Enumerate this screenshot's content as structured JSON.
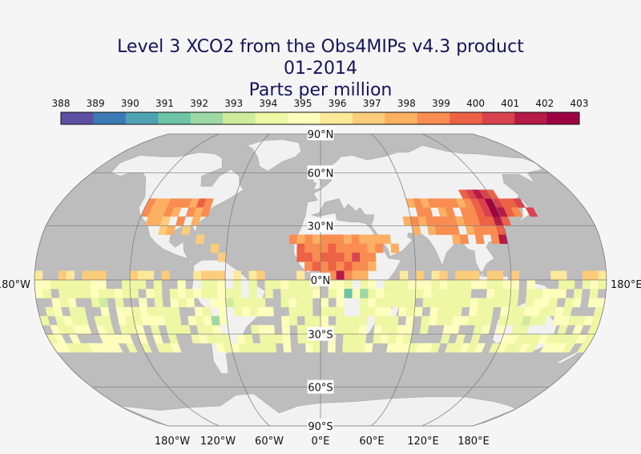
{
  "title": {
    "line1": "Level 3 XCO2 from the Obs4MIPs v4.3 product",
    "line2": "01-2014",
    "line3": "Parts per million"
  },
  "colorbar": {
    "ticks": [
      "388",
      "389",
      "390",
      "391",
      "392",
      "393",
      "394",
      "395",
      "396",
      "397",
      "398",
      "399",
      "400",
      "401",
      "402",
      "403"
    ],
    "colors": [
      "#5e4fa2",
      "#3c7ab6",
      "#4fa2b3",
      "#6cc4a5",
      "#9dd8a4",
      "#cfec9d",
      "#eef7a4",
      "#fefebd",
      "#fee99b",
      "#fdcc7a",
      "#fdaf62",
      "#f88c51",
      "#ed6145",
      "#d9434e",
      "#b61a47",
      "#9e0142"
    ]
  },
  "map": {
    "projection": "Robinson",
    "lat_labels": [
      "90°N",
      "60°N",
      "30°N",
      "0°N",
      "30°S",
      "60°S",
      "90°S"
    ],
    "lon_labels": [
      "180°W",
      "120°W",
      "60°W",
      "0°E",
      "60°E",
      "120°E",
      "180°E"
    ],
    "edge_label_left": "180°W",
    "edge_label_right": "180°E"
  },
  "chart_data": {
    "type": "heatmap",
    "title": "Level 3 XCO2 from the Obs4MIPs v4.3 product 01-2014",
    "units": "Parts per million",
    "value_range": [
      388,
      403
    ],
    "cell_size_deg": 5,
    "cells": [
      {
        "lon": -120,
        "lat": 40,
        "v": 398.5
      },
      {
        "lon": -115,
        "lat": 40,
        "v": 397.5
      },
      {
        "lon": -110,
        "lat": 40,
        "v": 398
      },
      {
        "lon": -105,
        "lat": 40,
        "v": 399
      },
      {
        "lon": -100,
        "lat": 40,
        "v": 398.5
      },
      {
        "lon": -95,
        "lat": 40,
        "v": 399
      },
      {
        "lon": -90,
        "lat": 40,
        "v": 398
      },
      {
        "lon": -85,
        "lat": 40,
        "v": 399.5
      },
      {
        "lon": -80,
        "lat": 40,
        "v": 398.5
      },
      {
        "lon": -120,
        "lat": 35,
        "v": 399
      },
      {
        "lon": -115,
        "lat": 35,
        "v": 398
      },
      {
        "lon": -110,
        "lat": 35,
        "v": 397.5
      },
      {
        "lon": -105,
        "lat": 35,
        "v": 398.5
      },
      {
        "lon": -100,
        "lat": 35,
        "v": 398
      },
      {
        "lon": -90,
        "lat": 35,
        "v": 399
      },
      {
        "lon": -85,
        "lat": 35,
        "v": 398
      },
      {
        "lon": -80,
        "lat": 35,
        "v": 399
      },
      {
        "lon": -115,
        "lat": 30,
        "v": 397.5
      },
      {
        "lon": -110,
        "lat": 30,
        "v": 398
      },
      {
        "lon": -105,
        "lat": 30,
        "v": 397
      },
      {
        "lon": -95,
        "lat": 30,
        "v": 398.5
      },
      {
        "lon": -85,
        "lat": 30,
        "v": 397.5
      },
      {
        "lon": -105,
        "lat": 25,
        "v": 397
      },
      {
        "lon": -100,
        "lat": 25,
        "v": 397.5
      },
      {
        "lon": -90,
        "lat": 25,
        "v": 397
      },
      {
        "lon": -80,
        "lat": 20,
        "v": 397
      },
      {
        "lon": -70,
        "lat": 15,
        "v": 396.5
      },
      {
        "lon": -65,
        "lat": 10,
        "v": 397
      },
      {
        "lon": -20,
        "lat": 20,
        "v": 399
      },
      {
        "lon": -15,
        "lat": 20,
        "v": 398
      },
      {
        "lon": -10,
        "lat": 20,
        "v": 398.5
      },
      {
        "lon": -5,
        "lat": 20,
        "v": 398
      },
      {
        "lon": 0,
        "lat": 20,
        "v": 398.5
      },
      {
        "lon": 5,
        "lat": 20,
        "v": 399
      },
      {
        "lon": 10,
        "lat": 20,
        "v": 398.5
      },
      {
        "lon": 15,
        "lat": 20,
        "v": 398
      },
      {
        "lon": 20,
        "lat": 20,
        "v": 398.5
      },
      {
        "lon": 25,
        "lat": 20,
        "v": 398
      },
      {
        "lon": 30,
        "lat": 20,
        "v": 397.5
      },
      {
        "lon": 35,
        "lat": 20,
        "v": 398
      },
      {
        "lon": 40,
        "lat": 20,
        "v": 397.5
      },
      {
        "lon": -15,
        "lat": 15,
        "v": 399.5
      },
      {
        "lon": -10,
        "lat": 15,
        "v": 399
      },
      {
        "lon": -5,
        "lat": 15,
        "v": 398.5
      },
      {
        "lon": 0,
        "lat": 15,
        "v": 399
      },
      {
        "lon": 5,
        "lat": 15,
        "v": 399.5
      },
      {
        "lon": 10,
        "lat": 15,
        "v": 399
      },
      {
        "lon": 15,
        "lat": 15,
        "v": 398.5
      },
      {
        "lon": 20,
        "lat": 15,
        "v": 399
      },
      {
        "lon": 25,
        "lat": 15,
        "v": 398.5
      },
      {
        "lon": 30,
        "lat": 15,
        "v": 398
      },
      {
        "lon": 35,
        "lat": 15,
        "v": 398.5
      },
      {
        "lon": 45,
        "lat": 15,
        "v": 398
      },
      {
        "lon": -15,
        "lat": 10,
        "v": 400
      },
      {
        "lon": -10,
        "lat": 10,
        "v": 399.5
      },
      {
        "lon": -5,
        "lat": 10,
        "v": 399
      },
      {
        "lon": 0,
        "lat": 10,
        "v": 399.5
      },
      {
        "lon": 5,
        "lat": 10,
        "v": 400
      },
      {
        "lon": 10,
        "lat": 10,
        "v": 399.5
      },
      {
        "lon": 15,
        "lat": 10,
        "v": 399
      },
      {
        "lon": 20,
        "lat": 10,
        "v": 400.5
      },
      {
        "lon": 25,
        "lat": 10,
        "v": 399
      },
      {
        "lon": 30,
        "lat": 10,
        "v": 398.5
      },
      {
        "lon": -10,
        "lat": 5,
        "v": 399
      },
      {
        "lon": -5,
        "lat": 5,
        "v": 399.5
      },
      {
        "lon": 0,
        "lat": 5,
        "v": 399
      },
      {
        "lon": 5,
        "lat": 5,
        "v": 400
      },
      {
        "lon": 10,
        "lat": 5,
        "v": 399
      },
      {
        "lon": 15,
        "lat": 5,
        "v": 399.5
      },
      {
        "lon": 20,
        "lat": 5,
        "v": 399
      },
      {
        "lon": 25,
        "lat": 5,
        "v": 398.5
      },
      {
        "lon": 30,
        "lat": 5,
        "v": 398
      },
      {
        "lon": 0,
        "lat": 0,
        "v": 398.5
      },
      {
        "lon": 5,
        "lat": 0,
        "v": 399
      },
      {
        "lon": 10,
        "lat": 0,
        "v": 402
      },
      {
        "lon": 15,
        "lat": 0,
        "v": 398.5
      },
      {
        "lon": 20,
        "lat": 0,
        "v": 398
      },
      {
        "lon": 25,
        "lat": 0,
        "v": 397.5
      },
      {
        "lon": 55,
        "lat": 30,
        "v": 398
      },
      {
        "lon": 60,
        "lat": 30,
        "v": 398.5
      },
      {
        "lon": 65,
        "lat": 30,
        "v": 398
      },
      {
        "lon": 70,
        "lat": 30,
        "v": 398.5
      },
      {
        "lon": 75,
        "lat": 30,
        "v": 399
      },
      {
        "lon": 80,
        "lat": 30,
        "v": 398.5
      },
      {
        "lon": 85,
        "lat": 30,
        "v": 399
      },
      {
        "lon": 90,
        "lat": 30,
        "v": 398
      },
      {
        "lon": 95,
        "lat": 30,
        "v": 398.5
      },
      {
        "lon": 100,
        "lat": 30,
        "v": 399
      },
      {
        "lon": 105,
        "lat": 30,
        "v": 399.5
      },
      {
        "lon": 110,
        "lat": 30,
        "v": 400
      },
      {
        "lon": 115,
        "lat": 30,
        "v": 401.5
      },
      {
        "lon": 120,
        "lat": 30,
        "v": 400
      },
      {
        "lon": 60,
        "lat": 25,
        "v": 397.5
      },
      {
        "lon": 70,
        "lat": 25,
        "v": 398
      },
      {
        "lon": 75,
        "lat": 25,
        "v": 398.5
      },
      {
        "lon": 80,
        "lat": 25,
        "v": 399
      },
      {
        "lon": 85,
        "lat": 25,
        "v": 398.5
      },
      {
        "lon": 95,
        "lat": 25,
        "v": 398
      },
      {
        "lon": 100,
        "lat": 25,
        "v": 398.5
      },
      {
        "lon": 105,
        "lat": 25,
        "v": 399
      },
      {
        "lon": 110,
        "lat": 25,
        "v": 398.5
      },
      {
        "lon": 115,
        "lat": 25,
        "v": 400
      },
      {
        "lon": 60,
        "lat": 40,
        "v": 398
      },
      {
        "lon": 65,
        "lat": 40,
        "v": 398.5
      },
      {
        "lon": 70,
        "lat": 40,
        "v": 398
      },
      {
        "lon": 75,
        "lat": 40,
        "v": 399
      },
      {
        "lon": 80,
        "lat": 40,
        "v": 398.5
      },
      {
        "lon": 85,
        "lat": 40,
        "v": 399
      },
      {
        "lon": 90,
        "lat": 40,
        "v": 398.5
      },
      {
        "lon": 95,
        "lat": 40,
        "v": 398
      },
      {
        "lon": 100,
        "lat": 40,
        "v": 399
      },
      {
        "lon": 105,
        "lat": 40,
        "v": 400
      },
      {
        "lon": 110,
        "lat": 40,
        "v": 400.5
      },
      {
        "lon": 115,
        "lat": 40,
        "v": 402.5
      },
      {
        "lon": 120,
        "lat": 40,
        "v": 401
      },
      {
        "lon": 125,
        "lat": 40,
        "v": 400
      },
      {
        "lon": 130,
        "lat": 40,
        "v": 399.5
      },
      {
        "lon": 135,
        "lat": 40,
        "v": 400.5
      },
      {
        "lon": 65,
        "lat": 35,
        "v": 398.5
      },
      {
        "lon": 70,
        "lat": 35,
        "v": 399
      },
      {
        "lon": 80,
        "lat": 35,
        "v": 398
      },
      {
        "lon": 85,
        "lat": 35,
        "v": 398.5
      },
      {
        "lon": 95,
        "lat": 35,
        "v": 399
      },
      {
        "lon": 100,
        "lat": 35,
        "v": 398.5
      },
      {
        "lon": 105,
        "lat": 35,
        "v": 400
      },
      {
        "lon": 110,
        "lat": 35,
        "v": 401
      },
      {
        "lon": 115,
        "lat": 35,
        "v": 403
      },
      {
        "lon": 120,
        "lat": 35,
        "v": 401.5
      },
      {
        "lon": 125,
        "lat": 35,
        "v": 400
      },
      {
        "lon": 130,
        "lat": 35,
        "v": 399
      },
      {
        "lon": 100,
        "lat": 45,
        "v": 399.5
      },
      {
        "lon": 105,
        "lat": 45,
        "v": 400.5
      },
      {
        "lon": 110,
        "lat": 45,
        "v": 401.5
      },
      {
        "lon": 115,
        "lat": 45,
        "v": 401
      },
      {
        "lon": 120,
        "lat": 45,
        "v": 400
      },
      {
        "lon": 140,
        "lat": 35,
        "v": 401
      },
      {
        "lon": 85,
        "lat": 20,
        "v": 398
      },
      {
        "lon": 90,
        "lat": 20,
        "v": 398.5
      },
      {
        "lon": 100,
        "lat": 20,
        "v": 399
      },
      {
        "lon": 110,
        "lat": 20,
        "v": 398.5
      },
      {
        "lon": 115,
        "lat": 20,
        "v": 401.5
      },
      {
        "lon": -70,
        "lat": -25,
        "v": 392
      },
      {
        "lon": 15,
        "lat": -10,
        "v": 391
      },
      {
        "lon": 25,
        "lat": -10,
        "v": 392
      },
      {
        "lon": -160,
        "lat": -10,
        "v": 394
      },
      {
        "lon": -140,
        "lat": -15,
        "v": 393.5
      },
      {
        "lon": -60,
        "lat": -15,
        "v": 393
      },
      {
        "lon": 130,
        "lat": -25,
        "v": 393.5
      }
    ],
    "southern_band_typical_value": 394.5,
    "tropical_band_typical_value": 396.5
  }
}
